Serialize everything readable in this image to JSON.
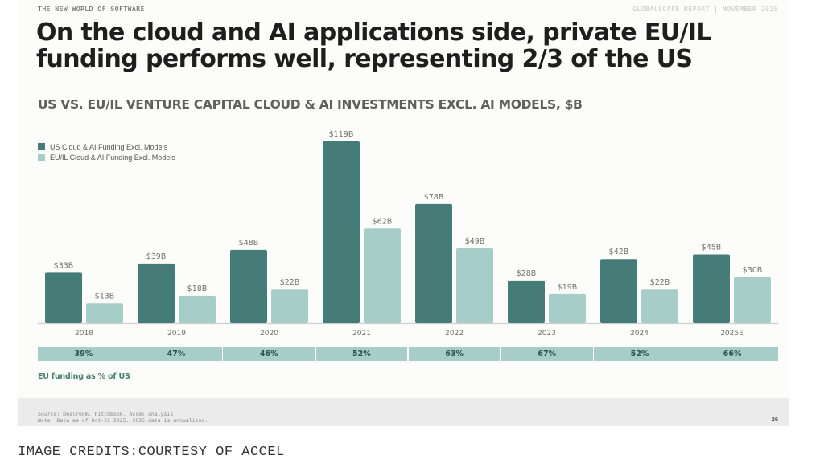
{
  "slide": {
    "kicker": "THE NEW WORLD OF SOFTWARE",
    "report_label": "GLOBALSCAPE REPORT | NOVEMBER 2025",
    "headline_line1": "On the cloud and AI applications side, private EU/IL",
    "headline_line2": "funding performs well, representing 2/3 of the US",
    "page_number": "26"
  },
  "colors": {
    "us": "#467c78",
    "eu": "#a6cdc8",
    "axis": "#cfcfcf",
    "label": "#6f6f6f"
  },
  "chart_data": {
    "type": "bar",
    "title": "US VS. EU/IL VENTURE CAPITAL CLOUD & AI INVESTMENTS EXCL. AI MODELS, $B",
    "xlabel": "",
    "ylabel": "",
    "ylim": [
      0,
      119
    ],
    "grid": false,
    "legend_position": "top-left",
    "categories": [
      "2018",
      "2019",
      "2020",
      "2021",
      "2022",
      "2023",
      "2024",
      "2025E"
    ],
    "series": [
      {
        "name": "US Cloud & AI Funding Excl. Models",
        "values": [
          33,
          39,
          48,
          119,
          78,
          28,
          42,
          45
        ],
        "labels": [
          "$33B",
          "$39B",
          "$48B",
          "$119B",
          "$78B",
          "$28B",
          "$42B",
          "$45B"
        ]
      },
      {
        "name": "EU/IL Cloud & AI Funding Excl. Models",
        "values": [
          13,
          18,
          22,
          62,
          49,
          19,
          22,
          30
        ],
        "labels": [
          "$13B",
          "$18B",
          "$22B",
          "$62B",
          "$49B",
          "$19B",
          "$22B",
          "$30B"
        ]
      }
    ],
    "ratio_row": {
      "label": "EU funding as % of US",
      "values": [
        "39%",
        "47%",
        "46%",
        "52%",
        "63%",
        "67%",
        "52%",
        "66%"
      ]
    }
  },
  "footer": {
    "source": "Source: Dealroom, Pitchbook, Accel analysis",
    "note": "Note: Data as of Oct-22 2025. 2025 data is annualized."
  },
  "credit": "IMAGE CREDITS:COURTESY OF ACCEL"
}
